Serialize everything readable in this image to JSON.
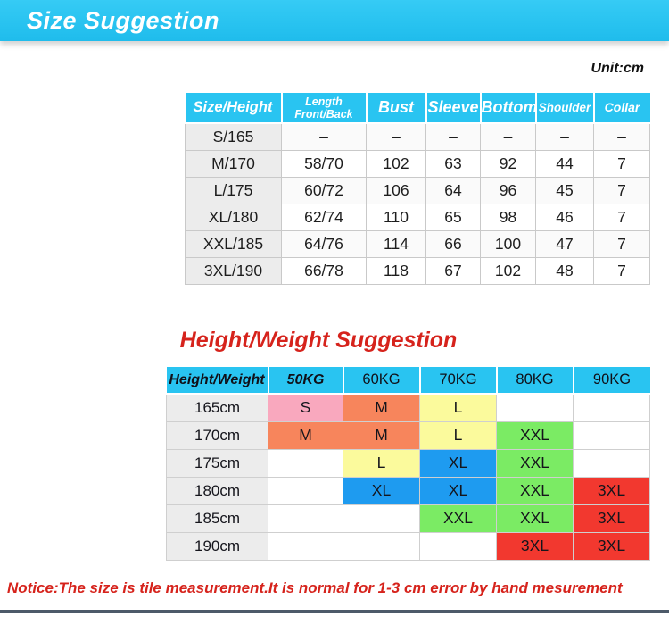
{
  "banner": {
    "title": "Size Suggestion"
  },
  "unit_label": "Unit:cm",
  "size_table": {
    "col_headers": [
      "Size/Height",
      "Length Front/Back",
      "Bust",
      "Sleeve",
      "Bottom",
      "Shoulder",
      "Collar"
    ],
    "rows": [
      {
        "size": "S/165",
        "values": [
          "–",
          "–",
          "–",
          "–",
          "–",
          "–"
        ]
      },
      {
        "size": "M/170",
        "values": [
          "58/70",
          "102",
          "63",
          "92",
          "44",
          "7"
        ]
      },
      {
        "size": "L/175",
        "values": [
          "60/72",
          "106",
          "64",
          "96",
          "45",
          "7"
        ]
      },
      {
        "size": "XL/180",
        "values": [
          "62/74",
          "110",
          "65",
          "98",
          "46",
          "7"
        ]
      },
      {
        "size": "XXL/185",
        "values": [
          "64/76",
          "114",
          "66",
          "100",
          "47",
          "7"
        ]
      },
      {
        "size": "3XL/190",
        "values": [
          "66/78",
          "118",
          "67",
          "102",
          "48",
          "7"
        ]
      }
    ]
  },
  "weight_section": {
    "title": "Height/Weight Suggestion",
    "corner_header": "Height/Weight",
    "col_headers": [
      "50KG",
      "60KG",
      "70KG",
      "80KG",
      "90KG"
    ],
    "rows": [
      {
        "height": "165cm",
        "cells": [
          {
            "label": "S",
            "color": "pink"
          },
          {
            "label": "M",
            "color": "orange"
          },
          {
            "label": "L",
            "color": "yellow"
          },
          {
            "label": "",
            "color": "none"
          },
          {
            "label": "",
            "color": "none"
          }
        ]
      },
      {
        "height": "170cm",
        "cells": [
          {
            "label": "M",
            "color": "orange"
          },
          {
            "label": "M",
            "color": "orange"
          },
          {
            "label": "L",
            "color": "yellow"
          },
          {
            "label": "XXL",
            "color": "green"
          },
          {
            "label": "",
            "color": "none"
          }
        ]
      },
      {
        "height": "175cm",
        "cells": [
          {
            "label": "",
            "color": "none"
          },
          {
            "label": "L",
            "color": "yellow"
          },
          {
            "label": "XL",
            "color": "blue"
          },
          {
            "label": "XXL",
            "color": "green"
          },
          {
            "label": "",
            "color": "none"
          }
        ]
      },
      {
        "height": "180cm",
        "cells": [
          {
            "label": "",
            "color": "none"
          },
          {
            "label": "XL",
            "color": "blue"
          },
          {
            "label": "XL",
            "color": "blue"
          },
          {
            "label": "XXL",
            "color": "green"
          },
          {
            "label": "3XL",
            "color": "red"
          }
        ]
      },
      {
        "height": "185cm",
        "cells": [
          {
            "label": "",
            "color": "none"
          },
          {
            "label": "",
            "color": "none"
          },
          {
            "label": "XXL",
            "color": "green"
          },
          {
            "label": "XXL",
            "color": "green"
          },
          {
            "label": "3XL",
            "color": "red"
          }
        ]
      },
      {
        "height": "190cm",
        "cells": [
          {
            "label": "",
            "color": "none"
          },
          {
            "label": "",
            "color": "none"
          },
          {
            "label": "",
            "color": "none"
          },
          {
            "label": "3XL",
            "color": "red"
          },
          {
            "label": "3XL",
            "color": "red"
          }
        ]
      }
    ],
    "palette": {
      "pink": "#F9A8BE",
      "orange": "#F7855C",
      "yellow": "#FBFA9C",
      "blue": "#1E9BF0",
      "green": "#7BEB64",
      "red": "#F2382F",
      "none": "#FFFFFF"
    }
  },
  "notice": "Notice:The size is tile measurement.It is normal for 1-3 cm error by hand mesurement",
  "colors": {
    "banner_cyan": "#29C3F0",
    "header_cyan": "#29C4F1",
    "title_red": "#D6231C",
    "first_col_gray": "#ECECEC",
    "bottom_bar": "#2E3D4F"
  }
}
